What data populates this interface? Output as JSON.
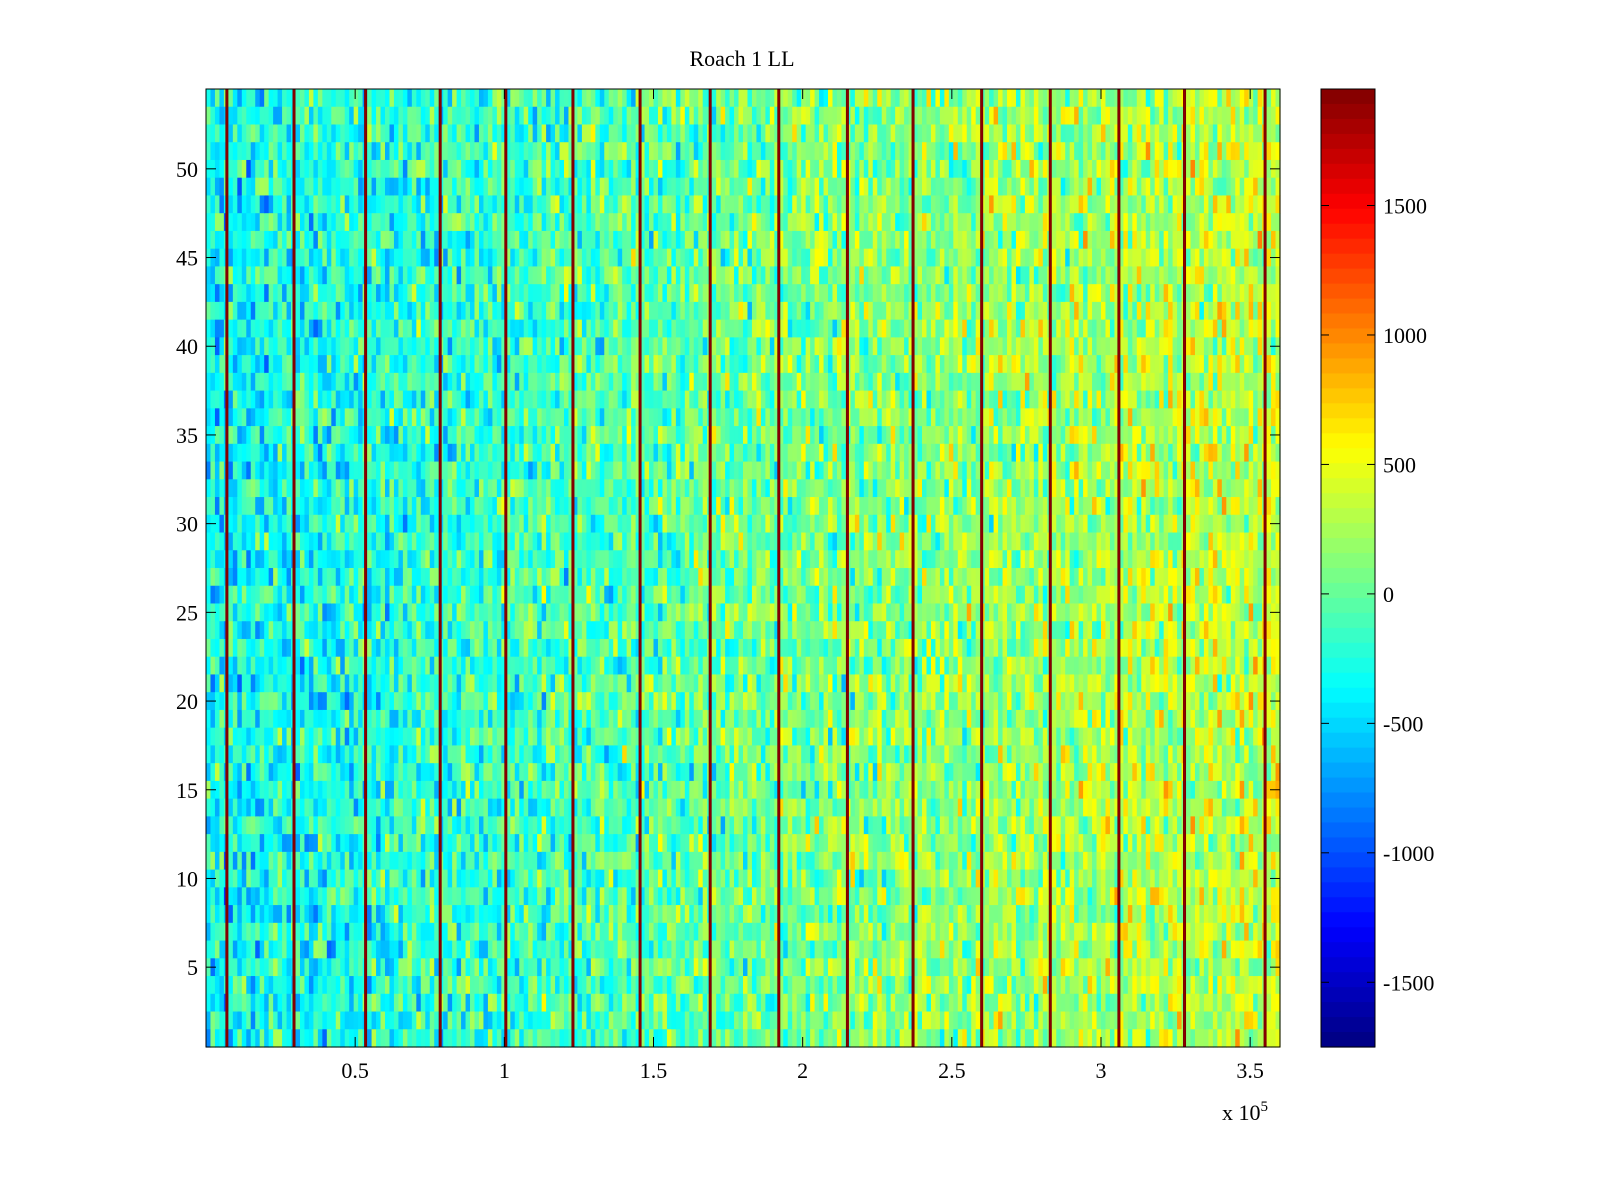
{
  "chart_data": {
    "type": "heatmap",
    "title": "Roach 1 LL",
    "xlabel": "",
    "ylabel": "",
    "x_range": [
      0,
      360000
    ],
    "y_range": [
      0.5,
      54.5
    ],
    "x_multiplier_label": "x 10",
    "x_multiplier_exponent": "5",
    "x_ticks": [
      {
        "value": 50000,
        "label": "0.5"
      },
      {
        "value": 100000,
        "label": "1"
      },
      {
        "value": 150000,
        "label": "1.5"
      },
      {
        "value": 200000,
        "label": "2"
      },
      {
        "value": 250000,
        "label": "2.5"
      },
      {
        "value": 300000,
        "label": "3"
      },
      {
        "value": 350000,
        "label": "3.5"
      }
    ],
    "y_ticks": [
      {
        "value": 5,
        "label": "5"
      },
      {
        "value": 10,
        "label": "10"
      },
      {
        "value": 15,
        "label": "15"
      },
      {
        "value": 20,
        "label": "20"
      },
      {
        "value": 25,
        "label": "25"
      },
      {
        "value": 30,
        "label": "30"
      },
      {
        "value": 35,
        "label": "35"
      },
      {
        "value": 40,
        "label": "40"
      },
      {
        "value": 45,
        "label": "45"
      },
      {
        "value": 50,
        "label": "50"
      }
    ],
    "rows": 54,
    "colormap": "jet",
    "color_range": [
      -1750,
      1950
    ],
    "colorbar_ticks": [
      {
        "value": 1500,
        "label": "1500"
      },
      {
        "value": 1000,
        "label": "1000"
      },
      {
        "value": 500,
        "label": "500"
      },
      {
        "value": 0,
        "label": "0"
      },
      {
        "value": -500,
        "label": "-500"
      },
      {
        "value": -1000,
        "label": "-1000"
      },
      {
        "value": -1500,
        "label": "-1500"
      }
    ],
    "background_trend": {
      "description_values": "mean value vs x in data units",
      "points": [
        [
          0,
          -350
        ],
        [
          100000,
          -150
        ],
        [
          200000,
          80
        ],
        [
          300000,
          250
        ],
        [
          360000,
          380
        ]
      ]
    },
    "stripes": [
      {
        "x": 7000,
        "value": 1900
      },
      {
        "x": 29500,
        "value": 1900
      },
      {
        "x": 53500,
        "value": 1900
      },
      {
        "x": 78500,
        "value": 1900
      },
      {
        "x": 100500,
        "value": 1900
      },
      {
        "x": 123000,
        "value": 1900
      },
      {
        "x": 145500,
        "value": 1900
      },
      {
        "x": 169000,
        "value": 1900
      },
      {
        "x": 192000,
        "value": 1900
      },
      {
        "x": 215000,
        "value": 1900
      },
      {
        "x": 237000,
        "value": 1900
      },
      {
        "x": 260000,
        "value": 1900
      },
      {
        "x": 283000,
        "value": 1900
      },
      {
        "x": 306000,
        "value": 1900
      },
      {
        "x": 328000,
        "value": 1900
      },
      {
        "x": 355000,
        "value": 1900
      }
    ]
  }
}
